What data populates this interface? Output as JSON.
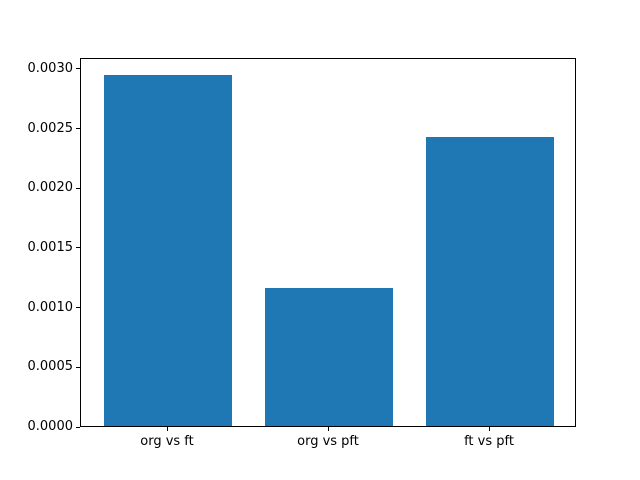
{
  "figure": {
    "background_color": "#ffffff",
    "text_color": "#000000",
    "spine_color": "#000000"
  },
  "chart_data": {
    "type": "bar",
    "title": "",
    "xlabel": "",
    "ylabel": "",
    "categories": [
      "org vs ft",
      "org vs pft",
      "ft vs pft"
    ],
    "values": [
      0.00294,
      0.00116,
      0.00242
    ],
    "bar_color": "#1f77b4",
    "bar_width_fraction": 0.8,
    "x_margin_units": 0.54,
    "ylim": [
      0,
      0.00309
    ],
    "yticks": [
      0.0,
      0.0005,
      0.001,
      0.0015,
      0.002,
      0.0025,
      0.003
    ],
    "ytick_decimals": 4,
    "grid": false,
    "legend": false
  }
}
